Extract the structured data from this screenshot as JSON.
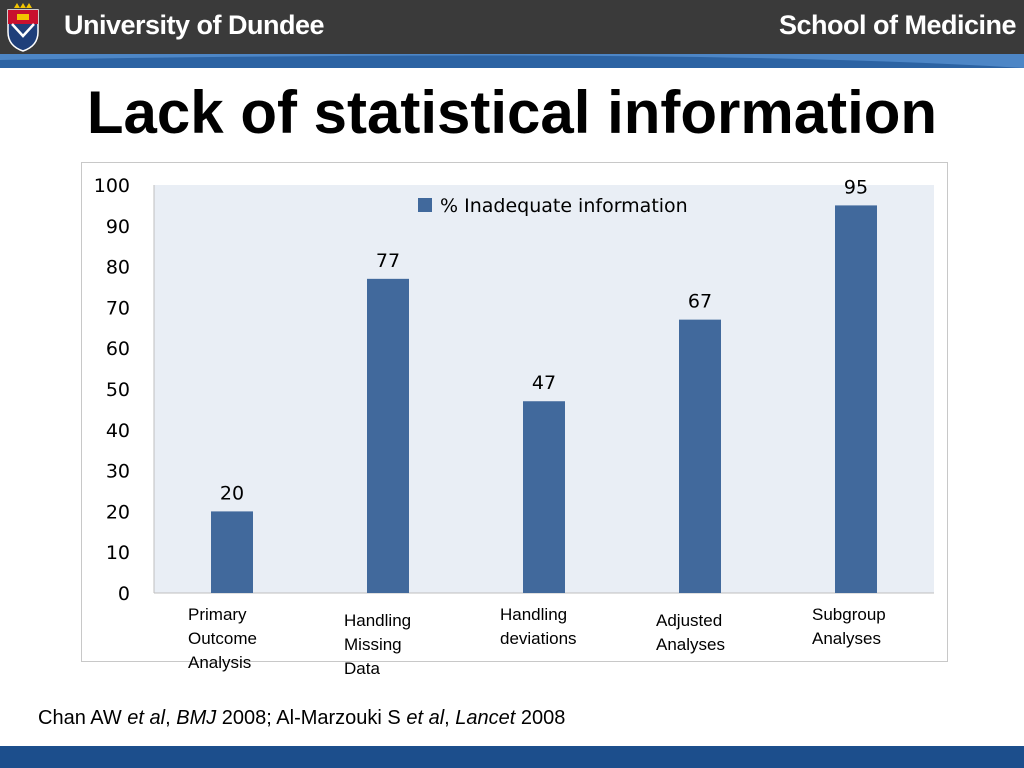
{
  "header": {
    "university": "University of Dundee",
    "school": "School of Medicine"
  },
  "slide": {
    "title": "Lack of statistical information"
  },
  "citation": {
    "author1": "Chan AW ",
    "etal1": "et al",
    "sep1": ", ",
    "journal1": "BMJ",
    "year1": " 2008; Al-Marzouki S ",
    "etal2": "et al",
    "sep2": ", ",
    "journal2": "Lancet",
    "year2": " 2008"
  },
  "colors": {
    "bar": "#41699c",
    "plot_background": "#e9eef5",
    "header": "#3a3a3a",
    "header_stripe": "#2c63a3",
    "footer": "#1c4e8c"
  },
  "chart_data": {
    "type": "bar",
    "categories": [
      "Primary\nOutcome\nAnalysis",
      "Handling\nMissing\nData",
      "Handling\ndeviations",
      "Adjusted\nAnalyses",
      "Subgroup\nAnalyses"
    ],
    "series": [
      {
        "name": "% Inadequate information",
        "values": [
          20,
          77,
          47,
          67,
          95
        ]
      }
    ],
    "ylim": [
      0,
      100
    ],
    "yticks": [
      "0",
      "10",
      "20",
      "30",
      "40",
      "50",
      "60",
      "70",
      "80",
      "90",
      "100"
    ],
    "data_labels": [
      "20",
      "77",
      "47",
      "67",
      "95"
    ],
    "legend_position": "top-center",
    "grid": false
  }
}
